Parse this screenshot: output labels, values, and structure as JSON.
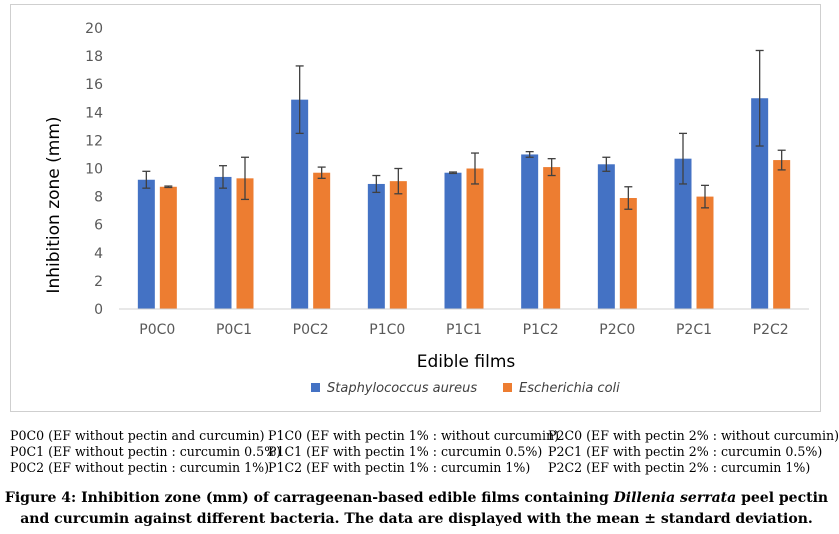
{
  "chart_data": {
    "type": "bar",
    "categories": [
      "P0C0",
      "P0C1",
      "P0C2",
      "P1C0",
      "P1C1",
      "P1C2",
      "P2C0",
      "P2C1",
      "P2C2"
    ],
    "series": [
      {
        "name": "Staphylococcus aureus",
        "color": "#4472c4",
        "values": [
          9.2,
          9.4,
          14.9,
          8.9,
          9.7,
          11.0,
          10.3,
          10.7,
          15.0
        ],
        "errors": [
          0.6,
          0.8,
          2.4,
          0.6,
          0.05,
          0.2,
          0.5,
          1.8,
          3.4
        ]
      },
      {
        "name": "Escherichia coli",
        "color": "#ed7d31",
        "values": [
          8.7,
          9.3,
          9.7,
          9.1,
          10.0,
          10.1,
          7.9,
          8.0,
          10.6
        ],
        "errors": [
          0.05,
          1.5,
          0.4,
          0.9,
          1.1,
          0.6,
          0.8,
          0.8,
          0.7
        ]
      }
    ],
    "xlabel": "Edible films",
    "ylabel": "Inhibition zone (mm)",
    "ylim": [
      0,
      20
    ],
    "yticks": [
      0,
      2,
      4,
      6,
      8,
      10,
      12,
      14,
      16,
      18,
      20
    ],
    "grid": false,
    "legend_position": "bottom",
    "errorbar_color": "#404040"
  },
  "notes": {
    "col1": [
      "P0C0 (EF without pectin and curcumin)",
      "P0C1 (EF without pectin : curcumin 0.5%)",
      "P0C2 (EF without pectin : curcumin 1%)"
    ],
    "col2": [
      "P1C0 (EF with pectin 1% : without curcumin)",
      "P1C1 (EF with pectin 1% : curcumin 0.5%)",
      "P1C2 (EF with pectin 1% : curcumin 1%)"
    ],
    "col3": [
      "P2C0 (EF with pectin 2% : without curcumin)",
      "P2C1 (EF with pectin 2% : curcumin 0.5%)",
      "P2C2 (EF with pectin 2% : curcumin 1%)"
    ]
  },
  "caption": {
    "prefix": "Figure 4: Inhibition zone (mm) of carrageenan-based edible films containing ",
    "species": "Dillenia serrata",
    "suffix": " peel pectin and curcumin against different bacteria. The data are displayed with the mean ± standard deviation."
  }
}
